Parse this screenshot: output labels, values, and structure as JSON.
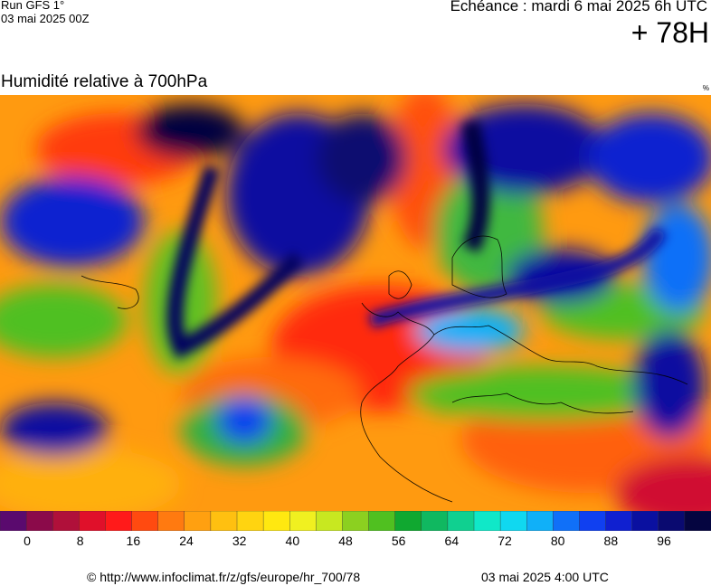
{
  "header": {
    "run": "Run GFS 1°",
    "run_date": "03 mai 2025 00Z",
    "valid": "Echéance : mardi 6 mai 2025 6h UTC",
    "lead": "+ 78H"
  },
  "map": {
    "title": "Humidité relative à 700hPa",
    "unit": "%"
  },
  "legend": {
    "colors": [
      "#5a0a6e",
      "#8b0a4a",
      "#b0103a",
      "#e0102a",
      "#ff1a1a",
      "#ff4a10",
      "#ff7a10",
      "#ffa010",
      "#ffc010",
      "#ffd410",
      "#ffe810",
      "#f0f020",
      "#c8e820",
      "#8cd020",
      "#50c020",
      "#10a830",
      "#10b860",
      "#10d090",
      "#10e8c8",
      "#10d8f0",
      "#10b0f8",
      "#1070f8",
      "#1040f0",
      "#1020d0",
      "#0a10a0",
      "#0a0a70",
      "#050540"
    ],
    "tick_labels": [
      "0",
      "8",
      "16",
      "24",
      "32",
      "40",
      "48",
      "56",
      "64",
      "72",
      "80",
      "88",
      "96"
    ],
    "tick_values": [
      0,
      8,
      16,
      24,
      32,
      40,
      48,
      56,
      64,
      72,
      80,
      88,
      96
    ],
    "vmin": 0,
    "vmax": 108
  },
  "footer": {
    "copyright": "© http://www.infoclimat.fr/z/gfs/europe/hr_700/78",
    "issued": "03 mai 2025  4:00 UTC"
  }
}
